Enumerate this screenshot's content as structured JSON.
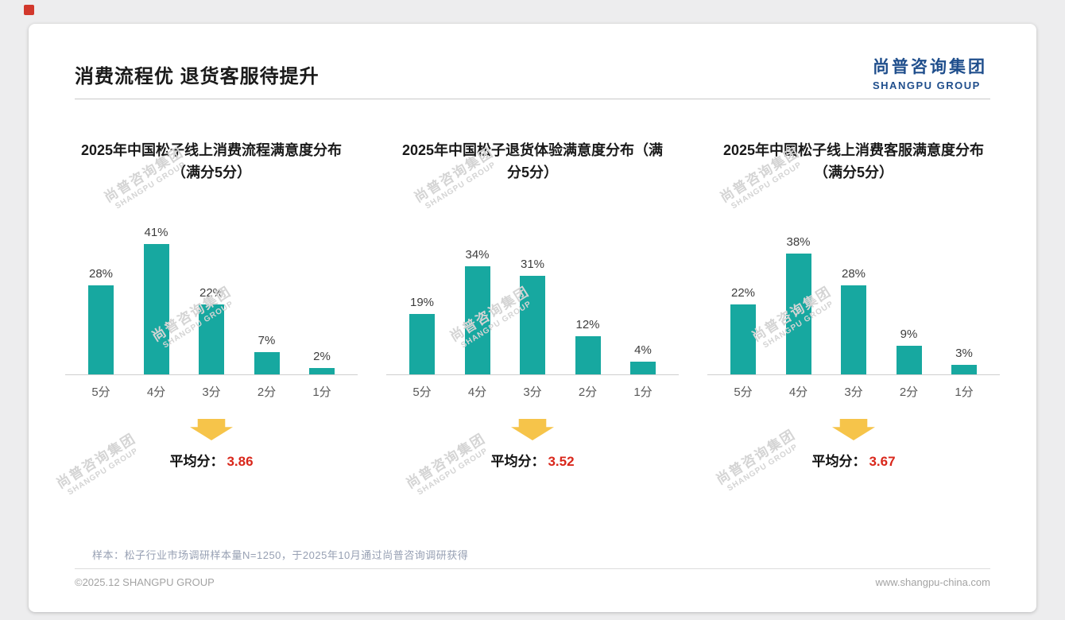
{
  "page": {
    "title": "消费流程优 退货客服待提升",
    "logo": {
      "cn": "尚普咨询集团",
      "en": "SHANGPU GROUP"
    },
    "watermark": {
      "line1": "尚普咨询集团",
      "line2": "SHANGPU GROUP"
    },
    "average_label": "平均分：",
    "footnote": "样本：松子行业市场调研样本量N=1250，于2025年10月通过尚普咨询调研获得",
    "footer_left": "©2025.12 SHANGPU GROUP",
    "footer_right": "www.shangpu-china.com",
    "colors": {
      "bar_teal": "#17a8a0",
      "average_red": "#d9271b",
      "arrow_gold": "#f6c44a",
      "logo_blue": "#1f4e8c",
      "corner_red": "#d2382c"
    }
  },
  "chart_data": [
    {
      "type": "bar",
      "title": "2025年中国松子线上消费流程满意度分布（满分5分）",
      "categories": [
        "5分",
        "4分",
        "3分",
        "2分",
        "1分"
      ],
      "values": [
        28,
        41,
        22,
        7,
        2
      ],
      "value_suffix": "%",
      "average": "3.86",
      "bar_color": "#17a8a0",
      "ylim": [
        0,
        45
      ],
      "grid": false,
      "legend": "none"
    },
    {
      "type": "bar",
      "title": "2025年中国松子退货体验满意度分布（满分5分）",
      "categories": [
        "5分",
        "4分",
        "3分",
        "2分",
        "1分"
      ],
      "values": [
        19,
        34,
        31,
        12,
        4
      ],
      "value_suffix": "%",
      "average": "3.52",
      "bar_color": "#17a8a0",
      "ylim": [
        0,
        45
      ],
      "grid": false,
      "legend": "none"
    },
    {
      "type": "bar",
      "title": "2025年中国松子线上消费客服满意度分布（满分5分）",
      "categories": [
        "5分",
        "4分",
        "3分",
        "2分",
        "1分"
      ],
      "values": [
        22,
        38,
        28,
        9,
        3
      ],
      "value_suffix": "%",
      "average": "3.67",
      "bar_color": "#17a8a0",
      "ylim": [
        0,
        45
      ],
      "grid": false,
      "legend": "none"
    }
  ]
}
